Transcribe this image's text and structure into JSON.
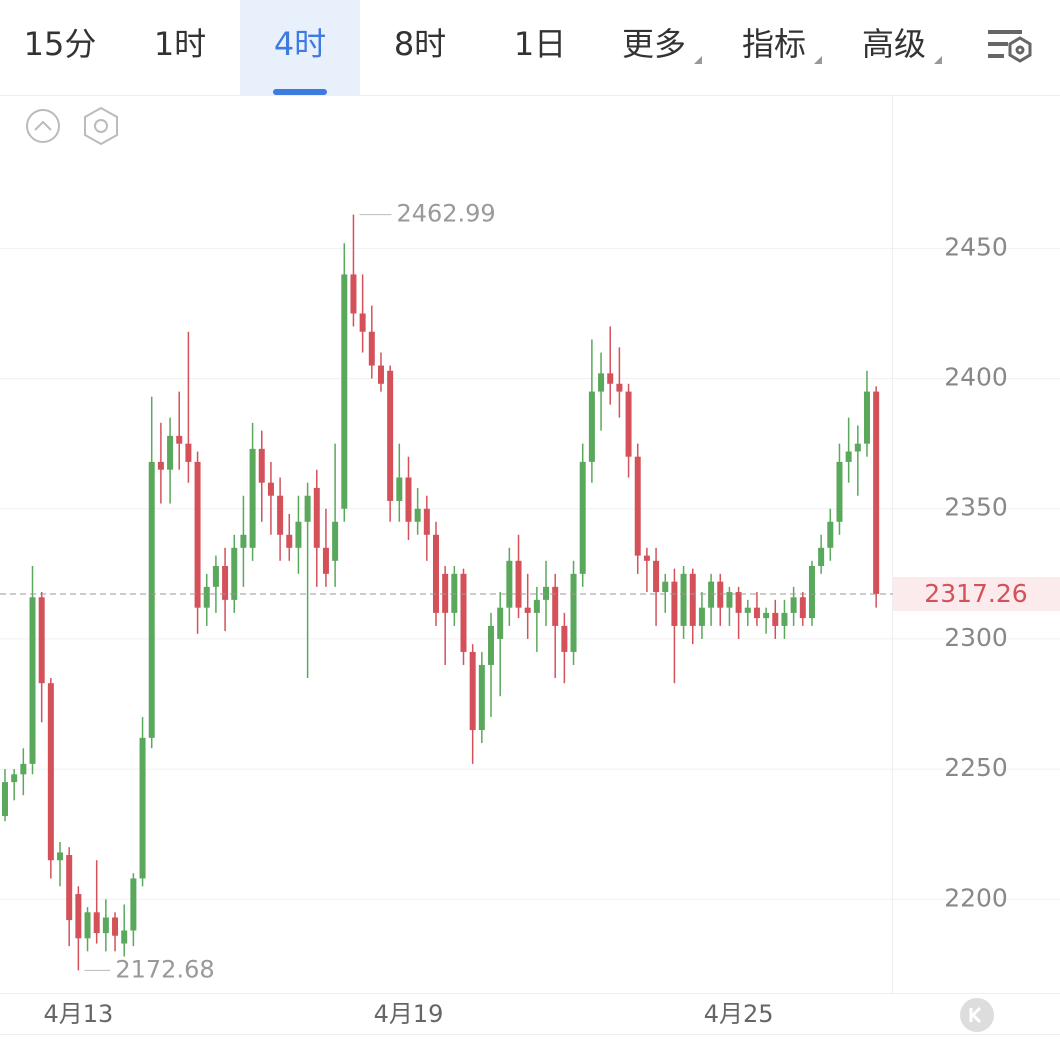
{
  "toolbar": {
    "tabs": [
      "15分",
      "1时",
      "4时",
      "8时",
      "1日",
      "更多",
      "指标",
      "高级"
    ],
    "active": 2
  },
  "chart_data": {
    "type": "candlestick",
    "up_color": "#5aa85c",
    "down_color": "#d4515a",
    "categories": [
      null,
      null,
      null,
      null,
      null,
      null,
      null,
      null,
      "4月13",
      null,
      null,
      null,
      null,
      null,
      null,
      null,
      null,
      null,
      null,
      null,
      null,
      null,
      null,
      null,
      null,
      null,
      null,
      null,
      null,
      null,
      null,
      null,
      null,
      null,
      null,
      null,
      null,
      null,
      null,
      null,
      null,
      null,
      null,
      null,
      "4月19",
      null,
      null,
      null,
      null,
      null,
      null,
      null,
      null,
      null,
      null,
      null,
      null,
      null,
      null,
      null,
      null,
      null,
      null,
      null,
      null,
      null,
      null,
      null,
      null,
      null,
      null,
      null,
      null,
      null,
      null,
      null,
      null,
      null,
      null,
      null,
      "4月25",
      null,
      null,
      null,
      null,
      null,
      null,
      null,
      null,
      null,
      null,
      null,
      null,
      null,
      null,
      null
    ],
    "open": [
      2232,
      2245,
      2248,
      2252,
      2316,
      2283,
      2215,
      2217,
      2202,
      2185,
      2195,
      2187,
      2193,
      2183,
      2188,
      2208,
      2262,
      2368,
      2365,
      2378,
      2375,
      2368,
      2312,
      2320,
      2328,
      2315,
      2335,
      2335,
      2373,
      2360,
      2355,
      2340,
      2335,
      2345,
      2358,
      2335,
      2330,
      2350,
      2440,
      2425,
      2418,
      2405,
      2403,
      2353,
      2362,
      2345,
      2350,
      2340,
      2325,
      2310,
      2325,
      2295,
      2265,
      2290,
      2300,
      2312,
      2330,
      2312,
      2310,
      2315,
      2320,
      2305,
      2295,
      2325,
      2368,
      2395,
      2402,
      2398,
      2395,
      2370,
      2332,
      2330,
      2318,
      2322,
      2305,
      2325,
      2305,
      2312,
      2322,
      2312,
      2318,
      2310,
      2312,
      2308,
      2310,
      2305,
      2310,
      2316,
      2308,
      2328,
      2335,
      2345,
      2368,
      2372,
      2375,
      2395
    ],
    "high": [
      2250,
      2250,
      2258,
      2328,
      2318,
      2285,
      2222,
      2220,
      2205,
      2197,
      2215,
      2200,
      2195,
      2198,
      2210,
      2270,
      2393,
      2383,
      2385,
      2395,
      2418,
      2372,
      2325,
      2332,
      2335,
      2340,
      2355,
      2383,
      2380,
      2368,
      2362,
      2348,
      2355,
      2360,
      2365,
      2350,
      2375,
      2452,
      2462.99,
      2440,
      2428,
      2410,
      2405,
      2375,
      2370,
      2358,
      2355,
      2345,
      2328,
      2328,
      2327,
      2298,
      2295,
      2310,
      2318,
      2335,
      2340,
      2325,
      2320,
      2330,
      2325,
      2310,
      2330,
      2375,
      2415,
      2410,
      2420,
      2412,
      2398,
      2375,
      2335,
      2335,
      2325,
      2327,
      2328,
      2327,
      2318,
      2325,
      2325,
      2320,
      2320,
      2315,
      2318,
      2312,
      2315,
      2315,
      2320,
      2318,
      2330,
      2340,
      2350,
      2375,
      2385,
      2382,
      2403,
      2397
    ],
    "low": [
      2230,
      2238,
      2240,
      2248,
      2268,
      2208,
      2205,
      2182,
      2172.68,
      2180,
      2183,
      2180,
      2180,
      2178,
      2182,
      2205,
      2258,
      2352,
      2352,
      2365,
      2360,
      2302,
      2305,
      2310,
      2303,
      2310,
      2320,
      2330,
      2345,
      2340,
      2330,
      2330,
      2325,
      2285,
      2320,
      2320,
      2320,
      2345,
      2420,
      2410,
      2400,
      2395,
      2345,
      2345,
      2338,
      2340,
      2330,
      2305,
      2290,
      2305,
      2290,
      2252,
      2260,
      2270,
      2278,
      2305,
      2308,
      2300,
      2295,
      2305,
      2285,
      2283,
      2290,
      2320,
      2360,
      2380,
      2390,
      2385,
      2362,
      2325,
      2318,
      2305,
      2310,
      2283,
      2300,
      2298,
      2300,
      2305,
      2305,
      2305,
      2300,
      2305,
      2305,
      2302,
      2300,
      2300,
      2305,
      2305,
      2305,
      2325,
      2330,
      2340,
      2360,
      2355,
      2370,
      2312
    ],
    "close": [
      2245,
      2248,
      2252,
      2316,
      2283,
      2215,
      2218,
      2192,
      2185,
      2195,
      2187,
      2193,
      2186,
      2188,
      2208,
      2262,
      2368,
      2365,
      2378,
      2375,
      2368,
      2312,
      2320,
      2328,
      2315,
      2335,
      2340,
      2373,
      2360,
      2355,
      2340,
      2335,
      2345,
      2355,
      2335,
      2325,
      2345,
      2440,
      2425,
      2418,
      2405,
      2398,
      2353,
      2362,
      2345,
      2350,
      2340,
      2310,
      2310,
      2325,
      2295,
      2265,
      2290,
      2305,
      2312,
      2330,
      2312,
      2310,
      2315,
      2320,
      2305,
      2295,
      2325,
      2368,
      2395,
      2402,
      2398,
      2395,
      2370,
      2332,
      2330,
      2318,
      2322,
      2305,
      2325,
      2305,
      2312,
      2322,
      2312,
      2318,
      2310,
      2312,
      2308,
      2310,
      2305,
      2310,
      2316,
      2308,
      2328,
      2335,
      2345,
      2368,
      2372,
      2375,
      2395,
      2317.26
    ],
    "ylim": [
      2164,
      2507
    ],
    "yticks": [
      2200,
      2250,
      2300,
      2350,
      2400,
      2450
    ],
    "grid": true
  }
}
